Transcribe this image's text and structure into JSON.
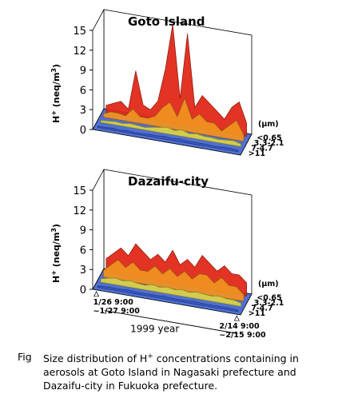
{
  "chart_data": [
    {
      "type": "surface3d",
      "title": "Goto Island",
      "y_label": [
        "H",
        "+",
        " (neq/m",
        "3",
        ")"
      ],
      "size_unit": "(μm)",
      "ylim": [
        0,
        15
      ],
      "yticks": [
        0,
        3,
        6,
        9,
        12,
        15
      ],
      "categories": [
        null,
        null,
        null,
        null,
        null,
        null,
        null,
        null,
        null,
        null,
        null,
        null,
        null,
        null,
        null,
        null,
        null,
        null,
        null,
        null
      ],
      "series": [
        {
          "name": "<0.65",
          "color": "#e02818",
          "values": [
            1,
            1.5,
            2,
            1,
            7,
            2,
            1.5,
            3,
            8,
            15,
            4,
            14,
            3,
            5,
            4,
            3,
            2,
            4,
            5,
            2
          ]
        },
        {
          "name": "3.3-2.1",
          "color": "#f09020",
          "values": [
            0.5,
            1,
            1,
            0.8,
            2,
            1,
            1,
            1.5,
            3,
            4,
            2,
            5,
            2,
            3,
            2,
            2,
            1,
            2,
            3,
            1
          ]
        },
        {
          "name": "7-4.7",
          "color": "#d8d048",
          "values": [
            0.3,
            0.4,
            0.5,
            0.4,
            0.6,
            0.5,
            0.4,
            0.6,
            0.8,
            1,
            0.7,
            1,
            0.6,
            0.8,
            0.6,
            0.6,
            0.5,
            0.6,
            0.7,
            0.4
          ]
        },
        {
          "name": ">11",
          "color": "#3858c8",
          "values": [
            0.2,
            0.2,
            0.3,
            0.2,
            0.3,
            0.2,
            0.2,
            0.3,
            0.3,
            0.4,
            0.3,
            0.4,
            0.3,
            0.3,
            0.3,
            0.3,
            0.2,
            0.3,
            0.3,
            0.2
          ]
        }
      ]
    },
    {
      "type": "surface3d",
      "title": "Dazaifu-city",
      "y_label": [
        "H",
        "+",
        " (neq/m",
        "3",
        ")"
      ],
      "size_unit": "(μm)",
      "x_label": "1999 year",
      "ylim": [
        0,
        15
      ],
      "yticks": [
        0,
        3,
        6,
        9,
        12,
        15
      ],
      "categories": [
        "1/26 9:00\n~1/27 9:00",
        null,
        null,
        null,
        null,
        null,
        null,
        null,
        null,
        null,
        null,
        null,
        null,
        null,
        null,
        null,
        null,
        null,
        null,
        "2/14 9:00\n~2/15 9:00"
      ],
      "series": [
        {
          "name": "<0.65",
          "color": "#e02818",
          "values": [
            2,
            3,
            4,
            3,
            5,
            4,
            3,
            4,
            3,
            5,
            3,
            4,
            3,
            5,
            4,
            3,
            4,
            3,
            3,
            2
          ]
        },
        {
          "name": "3.3-2.1",
          "color": "#f09020",
          "values": [
            1,
            2,
            3,
            2,
            3,
            2,
            2,
            3,
            2,
            3,
            2,
            3,
            2,
            3,
            3,
            2,
            3,
            2,
            2,
            1
          ]
        },
        {
          "name": "7-4.7",
          "color": "#d8d048",
          "values": [
            0.5,
            0.8,
            1,
            0.8,
            1,
            0.8,
            0.7,
            1,
            0.8,
            1,
            0.8,
            1,
            0.8,
            1,
            0.9,
            0.8,
            1,
            0.8,
            0.8,
            0.5
          ]
        },
        {
          "name": ">11",
          "color": "#3858c8",
          "values": [
            0.2,
            0.3,
            0.3,
            0.3,
            0.4,
            0.3,
            0.3,
            0.3,
            0.3,
            0.4,
            0.3,
            0.3,
            0.3,
            0.4,
            0.3,
            0.3,
            0.3,
            0.3,
            0.3,
            0.2
          ]
        }
      ]
    }
  ],
  "caption": {
    "label": "Fig",
    "before": "Size distribution of H",
    "sup": "+",
    "after": " concentrations containing in aerosols at Goto Island in Nagasaki prefecture and Dazaifu-city in Fukuoka prefecture."
  }
}
